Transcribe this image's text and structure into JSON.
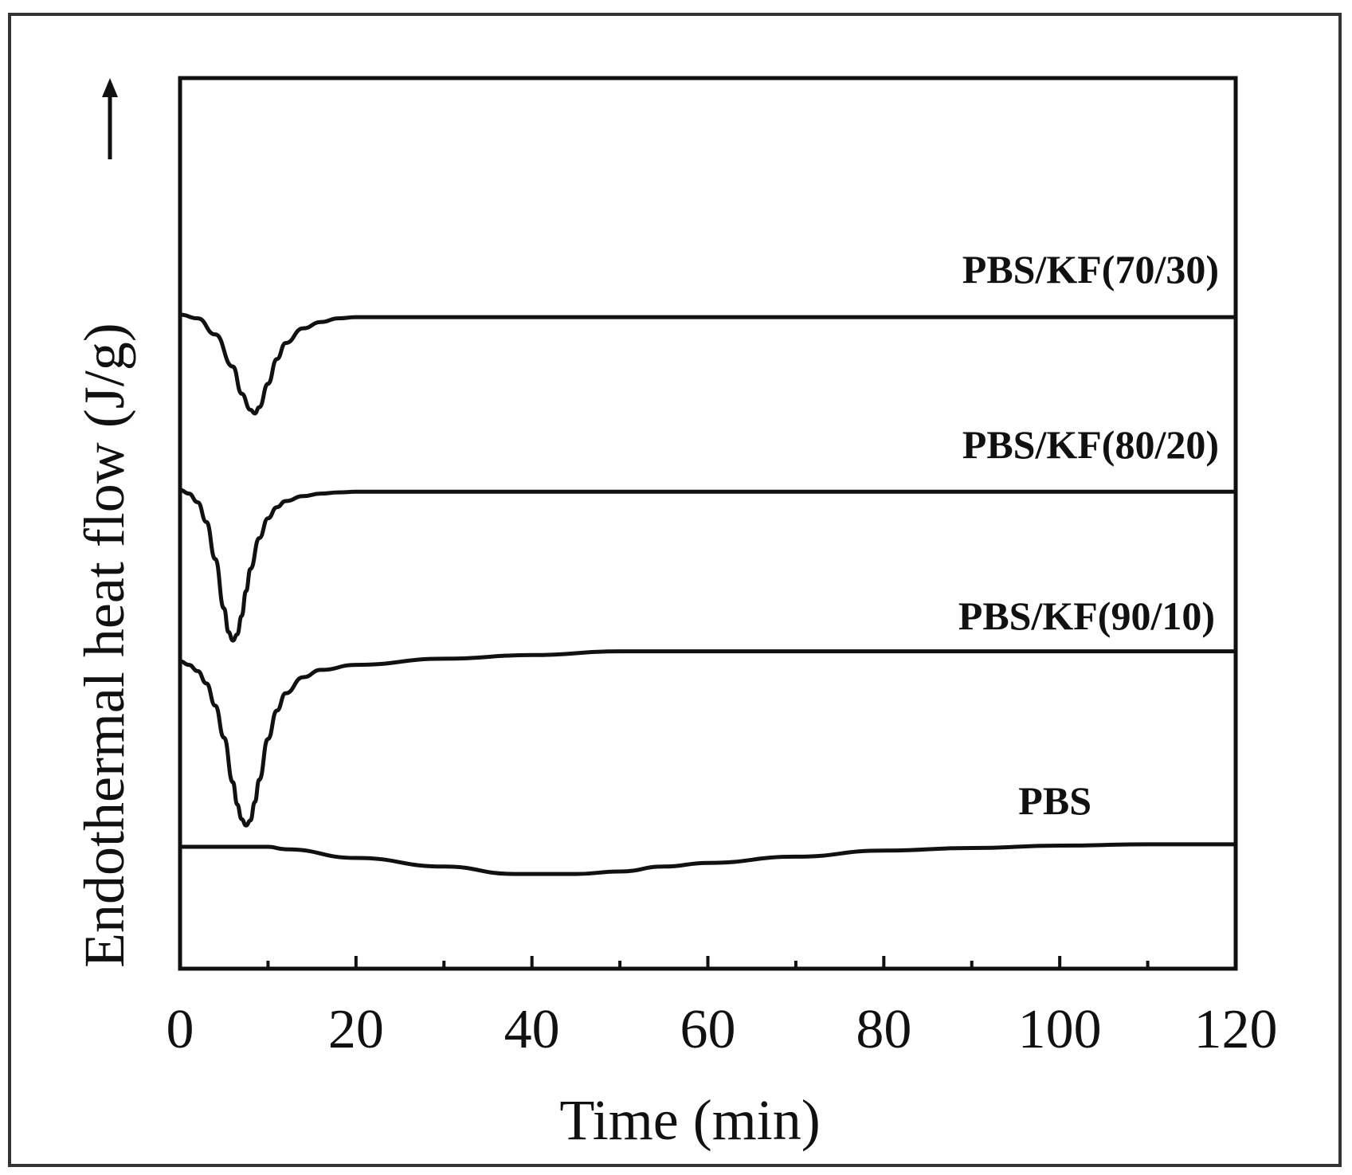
{
  "chart_data": {
    "type": "line",
    "xlabel": "Time (min)",
    "ylabel": "Endothermal heat flow  (J/g)",
    "xlim": [
      0,
      120
    ],
    "x_ticks": [
      "0",
      "20",
      "40",
      "60",
      "80",
      "100",
      "120"
    ],
    "x_minor_ticks": [
      10,
      30,
      50,
      70,
      90,
      110
    ],
    "y_ticks": [],
    "grid": false,
    "legend": "none",
    "line_color": "#111111",
    "series": [
      {
        "name": "PBS/KF(70/30)",
        "x": [
          0,
          2,
          4,
          6,
          7,
          8,
          8.5,
          9,
          10,
          11,
          12,
          14,
          16,
          18,
          20,
          40,
          60,
          80,
          100,
          120
        ],
        "y": [
          0,
          -0.3,
          -1.6,
          -4.2,
          -6.4,
          -7.7,
          -8.0,
          -7.5,
          -5.6,
          -3.6,
          -2.3,
          -1.1,
          -0.6,
          -0.3,
          -0.2,
          -0.2,
          -0.2,
          -0.2,
          -0.2,
          -0.2
        ]
      },
      {
        "name": "PBS/KF(80/20)",
        "x": [
          0,
          1,
          2,
          3,
          4,
          5,
          5.5,
          6,
          6.5,
          7,
          7.5,
          8,
          9,
          10,
          11,
          12,
          14,
          16,
          18,
          20,
          40,
          60,
          80,
          100,
          120
        ],
        "y": [
          0,
          -0.3,
          -1.0,
          -2.6,
          -5.6,
          -9.6,
          -11.5,
          -12.2,
          -11.7,
          -10.2,
          -8.2,
          -6.4,
          -3.9,
          -2.3,
          -1.4,
          -0.9,
          -0.5,
          -0.3,
          -0.2,
          -0.15,
          -0.15,
          -0.15,
          -0.15,
          -0.15,
          -0.15
        ]
      },
      {
        "name": "PBS/KF(90/10)",
        "x": [
          0,
          1,
          2,
          3,
          4,
          5,
          6,
          6.5,
          7,
          7.5,
          8,
          8.5,
          9,
          10,
          11,
          12,
          14,
          16,
          20,
          30,
          40,
          50,
          60,
          80,
          100,
          120
        ],
        "y": [
          0,
          -0.3,
          -0.8,
          -1.8,
          -3.6,
          -6.2,
          -9.8,
          -11.6,
          -12.8,
          -13.3,
          -12.9,
          -11.4,
          -9.6,
          -6.3,
          -4.0,
          -2.6,
          -1.3,
          -0.7,
          -0.3,
          0.2,
          0.5,
          0.8,
          0.8,
          0.8,
          0.8,
          0.8
        ]
      },
      {
        "name": "PBS",
        "x": [
          0,
          10,
          12,
          20,
          30,
          38,
          45,
          50,
          55,
          60,
          70,
          80,
          90,
          100,
          110,
          120
        ],
        "y": [
          0,
          0,
          -0.2,
          -0.9,
          -1.6,
          -2.2,
          -2.2,
          -2.0,
          -1.6,
          -1.3,
          -0.8,
          -0.3,
          -0.1,
          0.1,
          0.2,
          0.2
        ]
      }
    ]
  }
}
